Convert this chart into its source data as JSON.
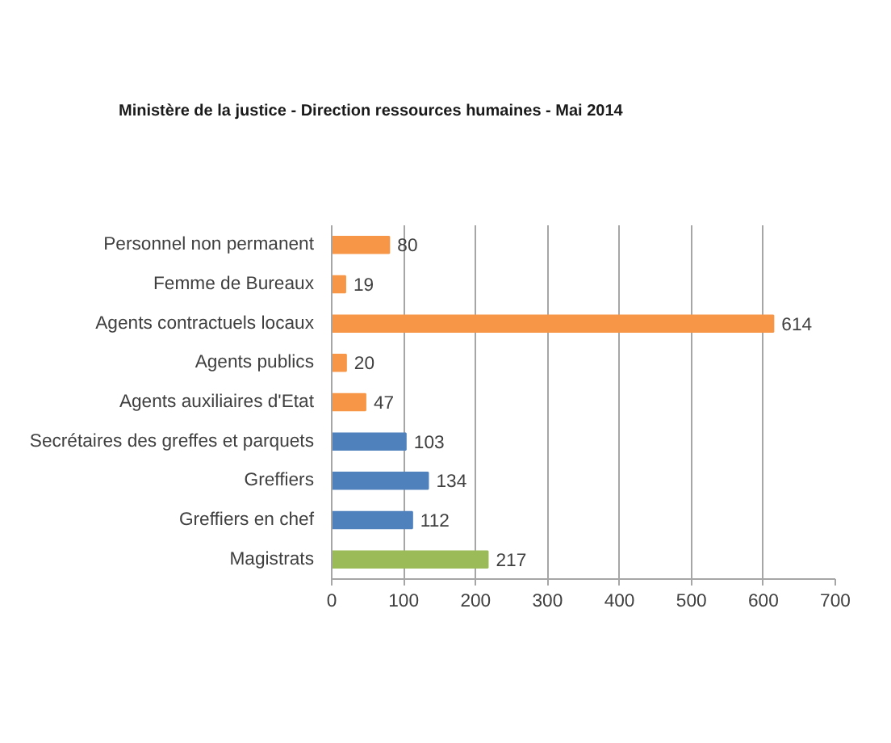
{
  "chart_data": {
    "type": "bar",
    "orientation": "horizontal",
    "title": "Ministère de la justice - Direction ressources humaines - Mai 2014",
    "categories": [
      "Personnel non permanent",
      "Femme de Bureaux",
      "Agents contractuels locaux",
      "Agents publics",
      "Agents auxiliaires d'Etat",
      "Secrétaires des greffes et parquets",
      "Greffiers",
      "Greffiers en chef",
      "Magistrats"
    ],
    "values": [
      80,
      19,
      614,
      20,
      47,
      103,
      134,
      112,
      217
    ],
    "colors": [
      "#f79646",
      "#f79646",
      "#f79646",
      "#f79646",
      "#f79646",
      "#4f81bd",
      "#4f81bd",
      "#4f81bd",
      "#9bbb59"
    ],
    "xlim": [
      0,
      700
    ],
    "xticks": [
      0,
      100,
      200,
      300,
      400,
      500,
      600,
      700
    ],
    "grid": "x",
    "data_labels": true
  }
}
